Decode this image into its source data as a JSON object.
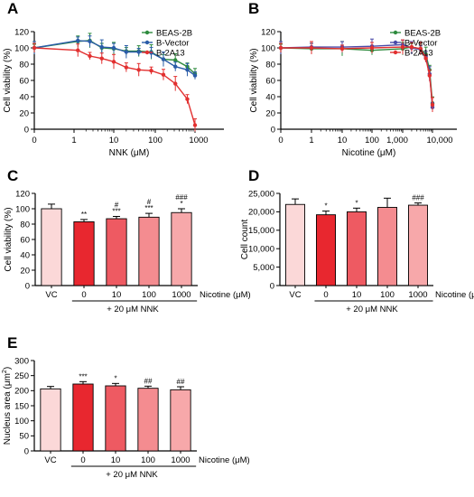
{
  "chart_data": [
    {
      "panel": "A",
      "type": "line",
      "xlabel": "NNK (μM)",
      "ylabel": "Cell viability (%)",
      "xlim": [
        0,
        1000
      ],
      "ylim": [
        0,
        120
      ],
      "xscale": "log-like",
      "yticks": [
        "0",
        "20",
        "40",
        "60",
        "80",
        "100",
        "120"
      ],
      "xticks": [
        "0",
        "1",
        "10",
        "100",
        "1000"
      ],
      "legend_position": "top-right",
      "series": [
        {
          "name": "BEAS-2B",
          "color": "#2e8b3e",
          "x": [
            0,
            1.25,
            2.5,
            5,
            10,
            20,
            40,
            80,
            160,
            320,
            640,
            1000
          ],
          "y": [
            100,
            108,
            109,
            100,
            99,
            96,
            96,
            95,
            86,
            85,
            77,
            68
          ]
        },
        {
          "name": "B-Vector",
          "color": "#2a5ca8",
          "x": [
            0,
            1.25,
            2.5,
            5,
            10,
            20,
            40,
            80,
            160,
            320,
            640,
            1000
          ],
          "y": [
            100,
            109,
            108,
            101,
            100,
            95,
            95,
            94,
            86,
            77,
            73,
            66
          ]
        },
        {
          "name": "B-2A13",
          "color": "#e23030",
          "x": [
            0,
            1.25,
            2.5,
            5,
            10,
            20,
            40,
            80,
            160,
            320,
            640,
            1000
          ],
          "y": [
            100,
            97,
            90,
            87,
            83,
            76,
            73,
            72,
            67,
            56,
            37,
            5
          ]
        }
      ]
    },
    {
      "panel": "B",
      "type": "line",
      "xlabel": "Nicotine (μM)",
      "ylabel": "Cell viability (%)",
      "xlim": [
        0,
        10000
      ],
      "ylim": [
        0,
        120
      ],
      "xscale": "log-like",
      "yticks": [
        "0",
        "20",
        "40",
        "60",
        "80",
        "100",
        "120"
      ],
      "xticks": [
        "0",
        "1",
        "10",
        "100",
        "1,000",
        "10,000"
      ],
      "legend_position": "top-right",
      "series": [
        {
          "name": "BEAS-2B",
          "color": "#2e8b3e",
          "x": [
            0,
            1,
            10,
            100,
            1000,
            2000,
            4000,
            6000,
            8000,
            10000
          ],
          "y": [
            100,
            99,
            99,
            97,
            99,
            101,
            99,
            92,
            73,
            32
          ]
        },
        {
          "name": "B-Vector",
          "color": "#4a4aa8",
          "x": [
            0,
            1,
            10,
            100,
            1000,
            2000,
            4000,
            6000,
            8000,
            10000
          ],
          "y": [
            100,
            101,
            101,
            102,
            104,
            100,
            98,
            89,
            68,
            27
          ]
        },
        {
          "name": "B-2A13",
          "color": "#e23030",
          "x": [
            0,
            1,
            10,
            100,
            1000,
            2000,
            4000,
            6000,
            8000,
            10000
          ],
          "y": [
            100,
            100,
            99,
            100,
            101,
            101,
            99,
            87,
            66,
            30
          ]
        }
      ]
    },
    {
      "panel": "C",
      "type": "bar",
      "ylabel": "Cell viability (%)",
      "ylim": [
        0,
        120
      ],
      "yticks": [
        "0",
        "20",
        "40",
        "60",
        "80",
        "100",
        "120"
      ],
      "categories": [
        "VC",
        "0",
        "10",
        "100",
        "1000"
      ],
      "values": [
        100,
        83,
        87,
        89,
        95
      ],
      "errors": [
        6,
        3,
        3,
        5,
        5
      ],
      "colors": [
        "#fbd8d8",
        "#e8272f",
        "#ee5a62",
        "#f48c90",
        "#f7a8aa"
      ],
      "sig_labels": [
        [
          ""
        ],
        [
          "**"
        ],
        [
          "#",
          "***"
        ],
        [
          "#",
          "***"
        ],
        [
          "###",
          "*"
        ]
      ],
      "group_label": "Nicotine (μM)",
      "bracket_label": "+ 20 μM NNK"
    },
    {
      "panel": "D",
      "type": "bar",
      "ylabel": "Cell count",
      "ylim": [
        0,
        25000
      ],
      "yticks": [
        "0",
        "5,000",
        "10,000",
        "15,000",
        "20,000",
        "25,000"
      ],
      "categories": [
        "VC",
        "0",
        "10",
        "100",
        "1000"
      ],
      "values": [
        22000,
        19200,
        20000,
        21200,
        21800
      ],
      "errors": [
        1500,
        1000,
        1000,
        2500,
        600
      ],
      "colors": [
        "#fbd8d8",
        "#e8272f",
        "#ee5a62",
        "#f48c90",
        "#f7a8aa"
      ],
      "sig_labels": [
        [
          ""
        ],
        [
          "*"
        ],
        [
          "*"
        ],
        [
          ""
        ],
        [
          "###"
        ]
      ],
      "group_label": "Nicotine (μM)",
      "bracket_label": "+ 20 μM NNK"
    },
    {
      "panel": "E",
      "type": "bar",
      "ylabel": "Nucleus area (μm²)",
      "ylabel_base": "Nucleus area (μm",
      "ylabel_sup": "2",
      "ylabel_end": ")",
      "ylim": [
        0,
        300
      ],
      "yticks": [
        "0",
        "50",
        "100",
        "150",
        "200",
        "250",
        "300"
      ],
      "categories": [
        "VC",
        "0",
        "10",
        "100",
        "1000"
      ],
      "values": [
        206,
        222,
        216,
        208,
        203
      ],
      "errors": [
        8,
        8,
        8,
        7,
        10
      ],
      "colors": [
        "#fbd8d8",
        "#e8272f",
        "#ee5a62",
        "#f48c90",
        "#f7a8aa"
      ],
      "sig_labels": [
        [
          ""
        ],
        [
          "***"
        ],
        [
          "*"
        ],
        [
          "##"
        ],
        [
          "##"
        ]
      ],
      "group_label": "Nicotine (μM)",
      "bracket_label": "+ 20 μM NNK"
    }
  ]
}
